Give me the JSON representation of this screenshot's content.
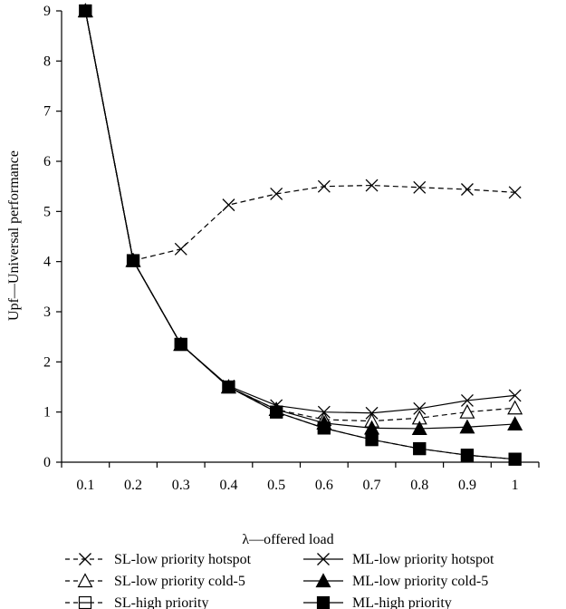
{
  "chart_data": {
    "type": "line",
    "title": "",
    "xlabel": "λ—offered load",
    "ylabel": "Upf—Universal performance",
    "x": [
      "0.1",
      "0.2",
      "0.3",
      "0.4",
      "0.5",
      "0.6",
      "0.7",
      "0.8",
      "0.9",
      "1"
    ],
    "ylim": [
      0,
      9
    ],
    "yticks": [
      "0",
      "1",
      "2",
      "3",
      "4",
      "5",
      "6",
      "7",
      "8",
      "9"
    ],
    "grid": false,
    "legend_position": "bottom",
    "series": [
      {
        "name": "SL-low priority hotspot",
        "style": "dashed",
        "marker": "x",
        "values": [
          9.0,
          4.02,
          4.25,
          5.13,
          5.35,
          5.5,
          5.52,
          5.48,
          5.44,
          5.38
        ]
      },
      {
        "name": "ML-low priority hotspot",
        "style": "solid",
        "marker": "x",
        "values": [
          9.0,
          4.02,
          2.35,
          1.52,
          1.13,
          1.0,
          0.98,
          1.07,
          1.23,
          1.33
        ]
      },
      {
        "name": "SL-low priority cold-5",
        "style": "dashed",
        "marker": "triangle-open",
        "values": [
          9.0,
          4.02,
          2.35,
          1.5,
          1.05,
          0.85,
          0.82,
          0.88,
          1.0,
          1.08
        ]
      },
      {
        "name": "ML-low priority cold-5",
        "style": "solid",
        "marker": "triangle-filled",
        "values": [
          9.0,
          4.02,
          2.35,
          1.5,
          1.05,
          0.78,
          0.68,
          0.67,
          0.7,
          0.76
        ]
      },
      {
        "name": "SL-high priority",
        "style": "dashed",
        "marker": "square-open",
        "values": [
          9.0,
          4.02,
          2.35,
          1.5,
          1.0,
          0.68,
          0.45,
          0.27,
          0.14,
          0.06
        ]
      },
      {
        "name": "ML-high priority",
        "style": "solid",
        "marker": "square-filled",
        "values": [
          9.0,
          4.02,
          2.35,
          1.5,
          1.0,
          0.68,
          0.45,
          0.27,
          0.14,
          0.06
        ]
      }
    ]
  }
}
